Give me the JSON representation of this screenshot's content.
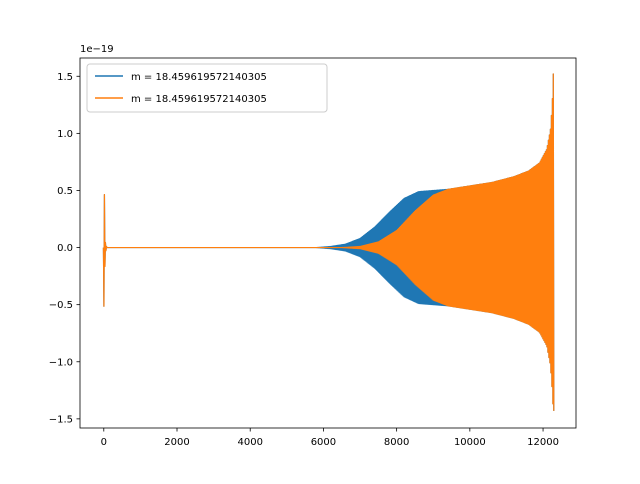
{
  "chart_data": {
    "type": "line",
    "title": "",
    "xlabel": "",
    "ylabel": "",
    "y_offset_label": "1e−19",
    "xlim": [
      -650,
      12900
    ],
    "ylim": [
      -1.58,
      1.66
    ],
    "x_ticks": [
      0,
      2000,
      4000,
      6000,
      8000,
      10000,
      12000
    ],
    "x_tick_labels": [
      "0",
      "2000",
      "4000",
      "6000",
      "8000",
      "10000",
      "12000"
    ],
    "y_ticks": [
      -1.5,
      -1.0,
      -0.5,
      0.0,
      0.5,
      1.0,
      1.5
    ],
    "y_tick_labels": [
      "−1.5",
      "−1.0",
      "−0.5",
      "0.0",
      "0.5",
      "1.0",
      "1.5"
    ],
    "grid": false,
    "legend_position": "upper-left",
    "series": [
      {
        "name": "m = 18.459619572140305",
        "color": "#1f77b4",
        "envelope_x": [
          -10,
          0,
          40,
          80,
          5800,
          6200,
          6600,
          7000,
          7400,
          7800,
          8200,
          8600,
          9000,
          9400,
          10000,
          10600,
          11200,
          11600,
          11900,
          12100,
          12200,
          12250,
          12280
        ],
        "envelope_upper": [
          0.0,
          0.78,
          0.05,
          0.0,
          0.0,
          0.01,
          0.03,
          0.08,
          0.18,
          0.31,
          0.43,
          0.49,
          0.5,
          0.51,
          0.54,
          0.57,
          0.62,
          0.67,
          0.74,
          0.86,
          1.03,
          1.25,
          1.52
        ],
        "envelope_lower": [
          0.0,
          -0.56,
          -0.05,
          0.0,
          0.0,
          -0.01,
          -0.03,
          -0.08,
          -0.18,
          -0.31,
          -0.43,
          -0.49,
          -0.5,
          -0.51,
          -0.54,
          -0.57,
          -0.62,
          -0.67,
          -0.74,
          -0.86,
          -1.03,
          -1.25,
          -1.43
        ]
      },
      {
        "name": "m = 18.459619572140305",
        "color": "#ff7f0e",
        "envelope_x": [
          -10,
          0,
          40,
          80,
          6500,
          7000,
          7500,
          8000,
          8500,
          9000,
          9400,
          10000,
          10600,
          11200,
          11600,
          11900,
          12100,
          12200,
          12250,
          12280
        ],
        "envelope_upper": [
          0.0,
          0.78,
          0.05,
          0.0,
          0.0,
          0.01,
          0.05,
          0.15,
          0.32,
          0.46,
          0.51,
          0.54,
          0.57,
          0.62,
          0.67,
          0.74,
          0.86,
          1.03,
          1.25,
          1.52
        ],
        "envelope_lower": [
          0.0,
          -0.56,
          -0.05,
          0.0,
          0.0,
          -0.01,
          -0.05,
          -0.15,
          -0.32,
          -0.46,
          -0.51,
          -0.54,
          -0.57,
          -0.62,
          -0.67,
          -0.74,
          -0.86,
          -1.03,
          -1.25,
          -1.43
        ]
      }
    ]
  }
}
